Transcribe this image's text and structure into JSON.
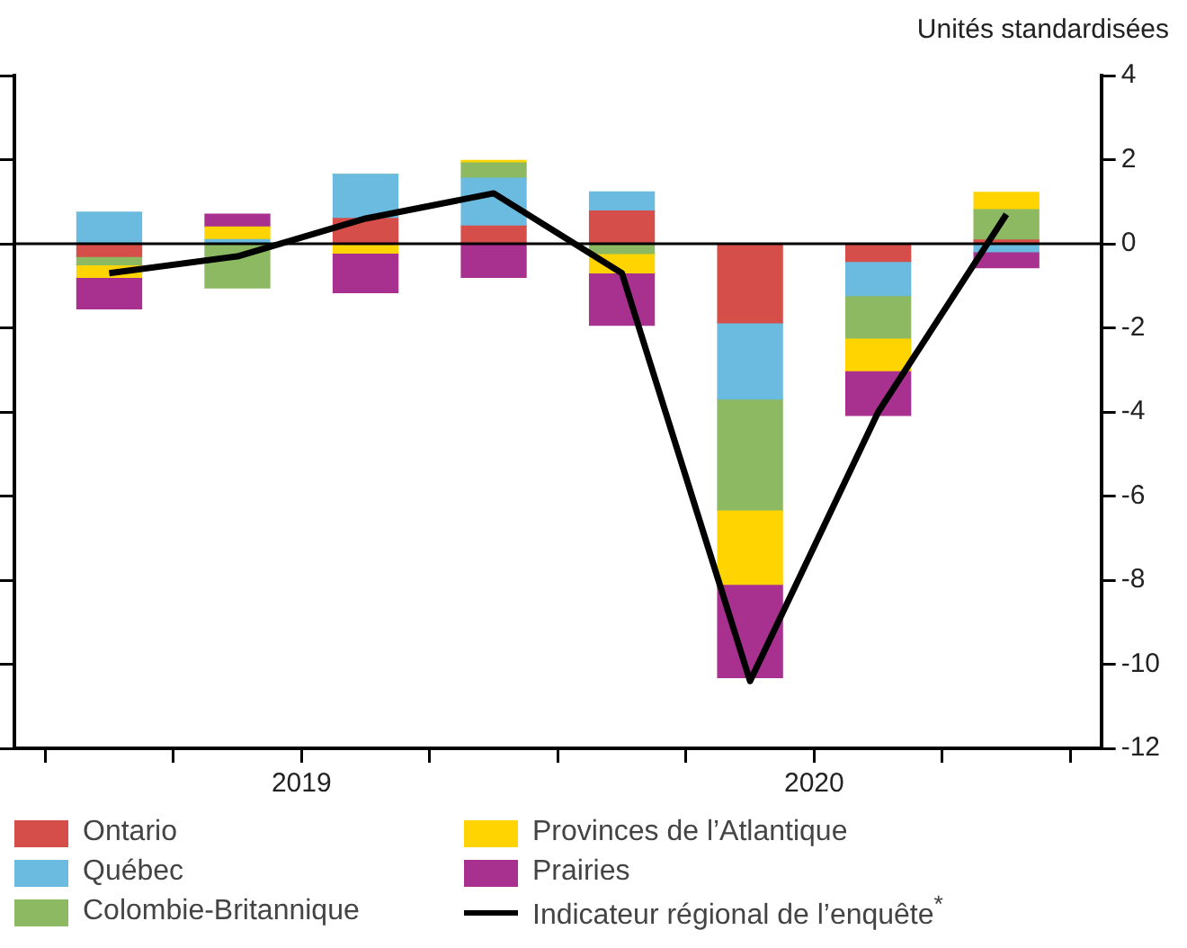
{
  "chart_data": {
    "type": "bar",
    "stacked": true,
    "ylabel": "Unités standardisées",
    "x": [
      2019.125,
      2019.375,
      2019.625,
      2019.875,
      2020.125,
      2020.375,
      2020.625,
      2020.875
    ],
    "xlim": [
      2018.94,
      2021.06
    ],
    "xticks": [
      {
        "value": 2019,
        "label": null
      },
      {
        "value": 2019.25,
        "label": null
      },
      {
        "value": 2019.5,
        "label": "2019"
      },
      {
        "value": 2019.75,
        "label": null
      },
      {
        "value": 2020,
        "label": null
      },
      {
        "value": 2020.25,
        "label": null
      },
      {
        "value": 2020.5,
        "label": "2020"
      },
      {
        "value": 2020.75,
        "label": null
      },
      {
        "value": 2021,
        "label": null
      }
    ],
    "ylim": [
      -12,
      4
    ],
    "yticks": [
      -12,
      -10,
      -8,
      -6,
      -4,
      -2,
      0,
      2,
      4
    ],
    "grid": false,
    "legend": "bottom",
    "marker": "none",
    "ref_lines": [
      {
        "axis": "y",
        "value": 0,
        "color": "#000000"
      }
    ],
    "series": [
      {
        "name": "Ontario",
        "color": "#d64e4a",
        "values": [
          -0.3,
          0,
          0.6,
          0.42,
          0.78,
          -1.88,
          -0.42,
          0.09
        ]
      },
      {
        "name": "Québec",
        "color": "#6bbbe0",
        "values": [
          0.75,
          0.1,
          1.05,
          1.14,
          0.45,
          -1.81,
          -0.81,
          -0.19
        ]
      },
      {
        "name": "Colombie-Britannique",
        "color": "#8cb962",
        "values": [
          -0.2,
          -1.05,
          0,
          0.36,
          -0.23,
          -2.64,
          -1.01,
          0.72
        ]
      },
      {
        "name": "Provinces de l’Atlantique",
        "color": "#ffd400",
        "values": [
          -0.3,
          0.3,
          -0.22,
          0.06,
          -0.46,
          -1.77,
          -0.78,
          0.41
        ]
      },
      {
        "name": "Prairies",
        "color": "#a8318f",
        "values": [
          -0.75,
          0.3,
          -0.94,
          -0.8,
          -1.25,
          -2.22,
          -1.06,
          -0.38
        ]
      },
      {
        "name": "Indicateur régional de l’enquête$^{*}$",
        "type": "line",
        "color": "#000000",
        "values": [
          -0.7,
          -0.3,
          0.6,
          1.2,
          -0.7,
          -10.4,
          -4.0,
          0.7
        ]
      }
    ]
  }
}
